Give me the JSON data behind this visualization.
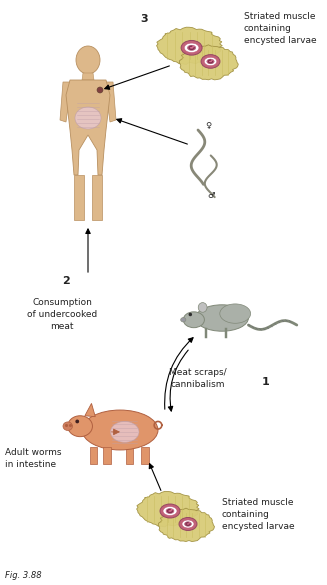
{
  "bg_color": "#ffffff",
  "body_color": "#ddb88a",
  "body_edge": "#b89060",
  "pig_color": "#e0956a",
  "pig_edge": "#b06040",
  "rat_color": "#aab0a8",
  "rat_edge": "#808878",
  "muscle_bg": "#d8cc78",
  "muscle_bg2": "#c8bc60",
  "muscle_edge": "#a09040",
  "cyst_color": "#c05878",
  "cyst_inner": "#f8c8d0",
  "cyst_core": "#d87090",
  "larva_color": "#803050",
  "worm_color": "#888878",
  "intest_color": "#e8c8d0",
  "intest_edge": "#c0a0a8",
  "text_color": "#222222",
  "arrow_color": "#111111",
  "label_fs": 6.5,
  "num_fs": 8,
  "caption_fs": 6,
  "top_muscle_label": "Striated muscle\ncontaining\nencysted larvae",
  "bot_muscle_label": "Striated muscle\ncontaining\nencysted larvae",
  "step2_label": "Consumption\nof undercooked\nmeat",
  "meat_label": "Meat scraps/\ncannibalism",
  "adult_label": "Adult worms\nin intestine",
  "step1": "1",
  "step2": "2",
  "step3": "3",
  "female_sym": "♀",
  "male_sym": "♂",
  "caption": "Fig. 3.88"
}
